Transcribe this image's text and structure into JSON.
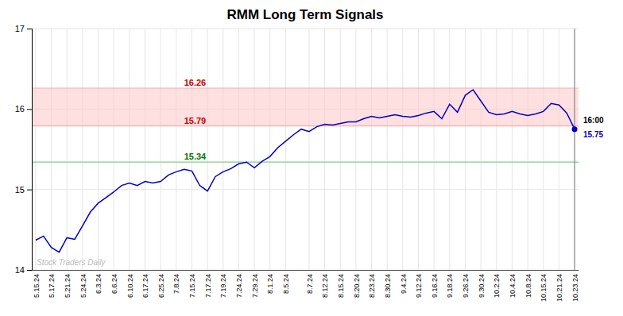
{
  "chart_data": {
    "type": "line",
    "title": "RMM Long Term Signals",
    "categories": [
      "5.15.24",
      null,
      "5.17.24",
      null,
      "5.21.24",
      null,
      "5.24.24",
      null,
      "6.3.24",
      null,
      "6.6.24",
      null,
      "6.10.24",
      null,
      "6.17.24",
      null,
      "6.25.24",
      null,
      "7.8.24",
      null,
      "7.15.24",
      null,
      "7.17.24",
      null,
      "7.19.24",
      null,
      "7.24.24",
      null,
      "7.29.24",
      null,
      "8.1.24",
      null,
      "8.5.24",
      null,
      null,
      "8.7.24",
      null,
      "8.12.24",
      null,
      "8.15.24",
      null,
      "8.20.24",
      null,
      "8.23.24",
      null,
      "8.30.24",
      null,
      "9.4.24",
      null,
      "9.12.24",
      null,
      "9.16.24",
      null,
      "9.18.24",
      null,
      "9.26.24",
      null,
      "9.30.24",
      null,
      "10.2.24",
      null,
      "10.4.24",
      null,
      "10.8.24",
      null,
      "10.15.24",
      null,
      "10.21.24",
      null,
      "10.23.24"
    ],
    "values": [
      14.37,
      14.42,
      14.28,
      14.22,
      14.4,
      14.38,
      14.55,
      14.72,
      14.83,
      14.9,
      14.97,
      15.05,
      15.08,
      15.05,
      15.1,
      15.08,
      15.1,
      15.18,
      15.22,
      15.25,
      15.23,
      15.05,
      14.98,
      15.16,
      15.22,
      15.26,
      15.32,
      15.34,
      15.27,
      15.35,
      15.41,
      15.52,
      15.6,
      15.68,
      15.75,
      15.72,
      15.78,
      15.81,
      15.8,
      15.82,
      15.84,
      15.84,
      15.88,
      15.91,
      15.89,
      15.91,
      15.93,
      15.91,
      15.9,
      15.92,
      15.95,
      15.97,
      15.88,
      16.06,
      15.96,
      16.17,
      16.24,
      16.1,
      15.96,
      15.93,
      15.94,
      15.97,
      15.94,
      15.92,
      15.94,
      15.97,
      16.07,
      16.05,
      15.95,
      15.75
    ],
    "color": "#0000cc",
    "ylim": [
      14,
      17
    ],
    "yticks": [
      14,
      15,
      16,
      17
    ],
    "grid": true,
    "band": {
      "from": 15.79,
      "to": 16.26,
      "color": "#ffcccc"
    },
    "reference_lines": [
      {
        "value": 16.26,
        "label": "16.26",
        "color": "#ffaaaa",
        "label_color": "#cc0000"
      },
      {
        "value": 15.79,
        "label": "15.79",
        "color": "#ffaaaa",
        "label_color": "#cc0000"
      },
      {
        "value": 15.34,
        "label": "15.34",
        "color": "#88cc88",
        "label_color": "#007700"
      }
    ],
    "watermark": {
      "text": "Stock Traders Daily",
      "color": "#bbbbbb"
    },
    "last_point": {
      "time": "16:00",
      "time_color": "#000000",
      "label": "15.75",
      "color": "#0000cc",
      "line_color": "#888888",
      "marker": "circle"
    }
  }
}
